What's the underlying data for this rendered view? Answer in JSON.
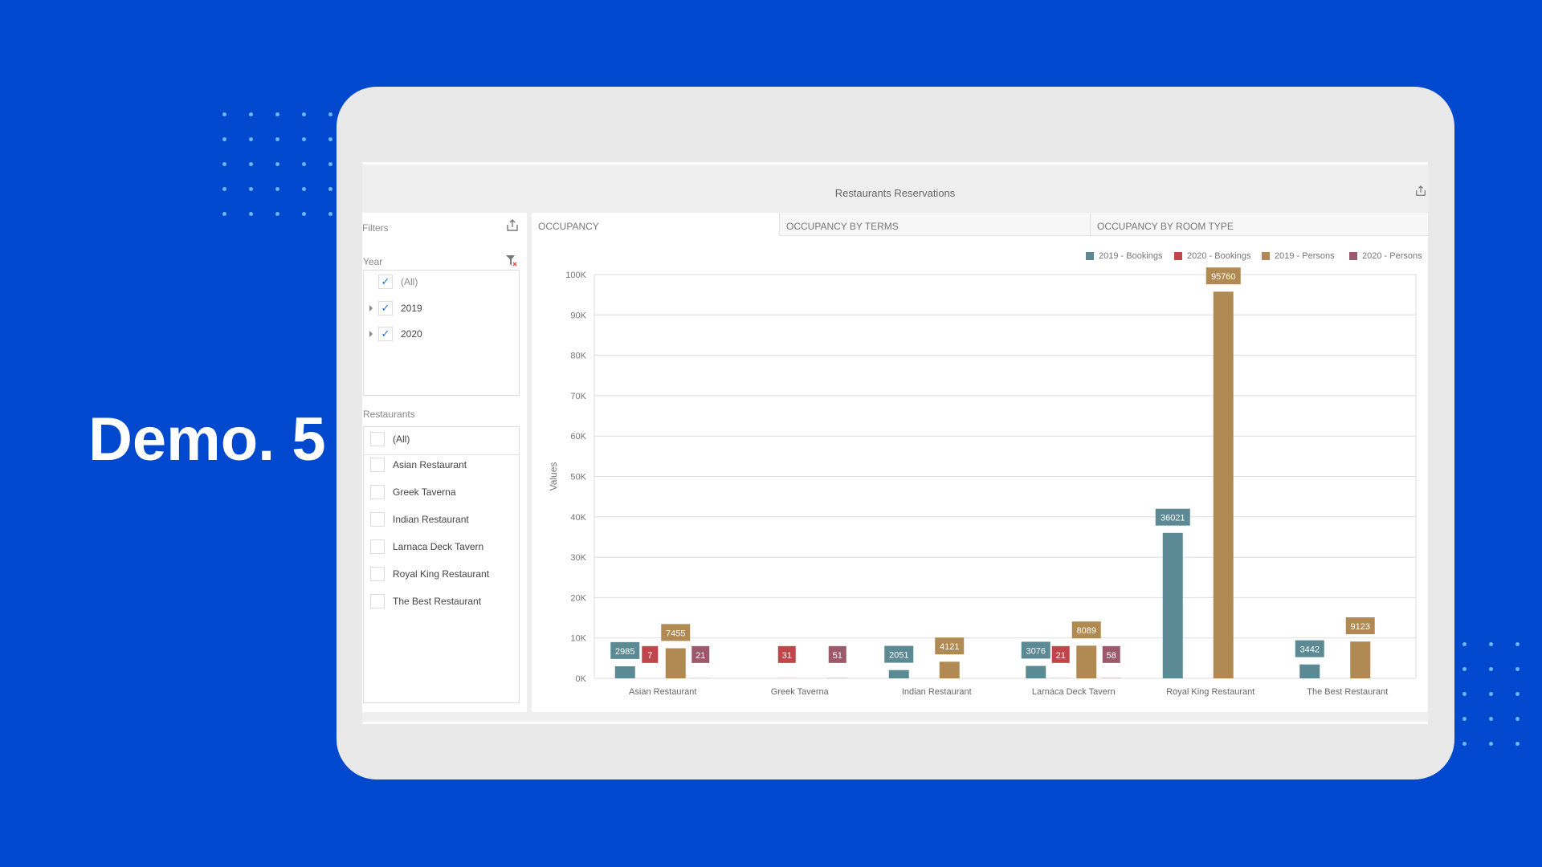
{
  "hero": {
    "title": "Demo. 5"
  },
  "dashboard": {
    "title": "Restaurants Reservations"
  },
  "filters": {
    "title": "Filters",
    "year": {
      "label": "Year",
      "items": [
        {
          "label": "(All)",
          "checked": true
        },
        {
          "label": "2019",
          "checked": true
        },
        {
          "label": "2020",
          "checked": true
        }
      ]
    },
    "restaurants": {
      "label": "Restaurants",
      "items": [
        {
          "label": "(All)",
          "checked": false
        },
        {
          "label": "Asian Restaurant",
          "checked": false
        },
        {
          "label": "Greek Taverna",
          "checked": false
        },
        {
          "label": "Indian Restaurant",
          "checked": false
        },
        {
          "label": "Larnaca Deck Tavern",
          "checked": false
        },
        {
          "label": "Royal King Restaurant",
          "checked": false
        },
        {
          "label": "The Best Restaurant",
          "checked": false
        }
      ]
    }
  },
  "tabs": [
    {
      "label": "OCCUPANCY",
      "active": true
    },
    {
      "label": "OCCUPANCY BY TERMS"
    },
    {
      "label": "OCCUPANCY BY ROOM TYPE"
    }
  ],
  "colors": {
    "bg": "#0049cf",
    "s2019b": "#5b8a94",
    "s2020b": "#c0464c",
    "s2019p": "#b08a52",
    "s2020p": "#9a5a6c"
  },
  "chart_data": {
    "type": "bar",
    "title": "",
    "xlabel": "",
    "ylabel": "Values",
    "ylim": [
      0,
      100000
    ],
    "yticks": [
      "0K",
      "10K",
      "20K",
      "30K",
      "40K",
      "50K",
      "60K",
      "70K",
      "80K",
      "90K",
      "100K"
    ],
    "legend_position": "top-right",
    "grid": true,
    "categories": [
      "Asian Restaurant",
      "Greek Taverna",
      "Indian Restaurant",
      "Larnaca Deck Tavern",
      "Royal King Restaurant",
      "The Best Restaurant"
    ],
    "series": [
      {
        "name": "2019 - Bookings",
        "color": "#5b8a94",
        "values": [
          2985,
          null,
          2051,
          3076,
          36021,
          3442
        ]
      },
      {
        "name": "2020 - Bookings",
        "color": "#c0464c",
        "values": [
          7,
          31,
          null,
          21,
          null,
          null
        ]
      },
      {
        "name": "2019 - Persons",
        "color": "#b08a52",
        "values": [
          7455,
          null,
          4121,
          8089,
          95760,
          9123
        ]
      },
      {
        "name": "2020 - Persons",
        "color": "#9a5a6c",
        "values": [
          21,
          51,
          null,
          58,
          null,
          null
        ]
      }
    ]
  }
}
